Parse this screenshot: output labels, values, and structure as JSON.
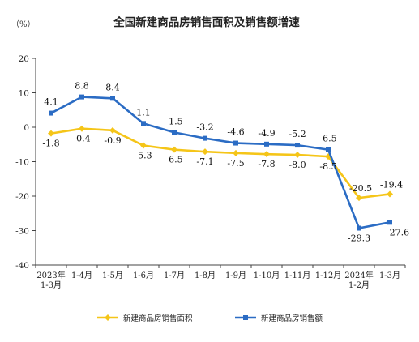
{
  "chart_data": {
    "type": "line",
    "title": "全国新建商品房销售面积及销售额增速",
    "unit": "（%）",
    "categories": [
      [
        "2023年",
        "1-3月"
      ],
      [
        "1-4月"
      ],
      [
        "1-5月"
      ],
      [
        "1-6月"
      ],
      [
        "1-7月"
      ],
      [
        "1-8月"
      ],
      [
        "1-9月"
      ],
      [
        "1-10月"
      ],
      [
        "1-11月"
      ],
      [
        "1-12月"
      ],
      [
        "2024年",
        "1-2月"
      ],
      [
        "1-3月"
      ]
    ],
    "ylim": [
      -40,
      20
    ],
    "yticks": [
      20,
      10,
      0,
      -10,
      -20,
      -30,
      -40
    ],
    "grid": false,
    "legend_position": "bottom",
    "series": [
      {
        "name": "新建商品房销售面积",
        "color": "#F5C518",
        "marker": "diamond",
        "values": [
          -1.8,
          -0.4,
          -0.9,
          -5.3,
          -6.5,
          -7.1,
          -7.5,
          -7.8,
          -8.0,
          -8.5,
          -20.5,
          -19.4
        ],
        "labels": [
          "-1.8",
          "-0.4",
          "-0.9",
          "-5.3",
          "-6.5",
          "-7.1",
          "-7.5",
          "-7.8",
          "-8.0",
          "-8.5",
          "-20.5",
          "-19.4"
        ]
      },
      {
        "name": "新建商品房销售额",
        "color": "#2B6CC4",
        "marker": "square",
        "values": [
          4.1,
          8.8,
          8.4,
          1.1,
          -1.5,
          -3.2,
          -4.6,
          -4.9,
          -5.2,
          -6.5,
          -29.3,
          -27.6
        ],
        "labels": [
          "4.1",
          "8.8",
          "8.4",
          "1.1",
          "-1.5",
          "-3.2",
          "-4.6",
          "-4.9",
          "-5.2",
          "-6.5",
          "-29.3",
          "-27.6"
        ]
      }
    ]
  }
}
